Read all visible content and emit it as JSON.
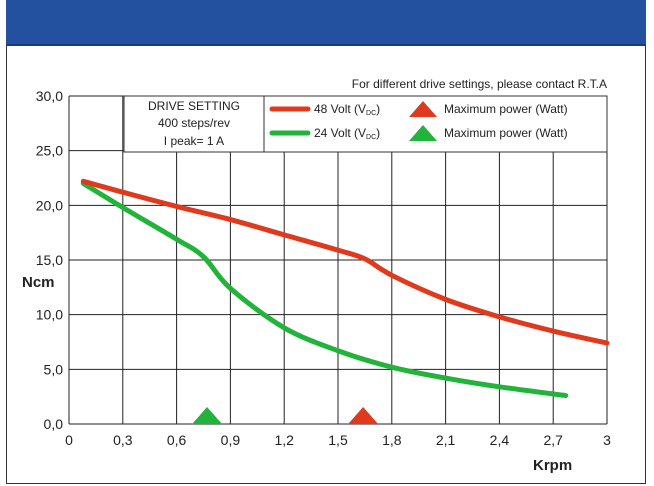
{
  "chart_data": {
    "type": "line",
    "xlabel": "Krpm",
    "ylabel": "Ncm",
    "xlim": [
      0,
      3
    ],
    "ylim": [
      0,
      30
    ],
    "x_ticks": [
      "0",
      "0,3",
      "0,6",
      "0,9",
      "1,2",
      "1,5",
      "1,8",
      "2,1",
      "2,4",
      "2,7",
      "3"
    ],
    "x_tick_values": [
      0,
      0.3,
      0.6,
      0.9,
      1.2,
      1.5,
      1.8,
      2.1,
      2.4,
      2.7,
      3.0
    ],
    "y_ticks": [
      "0,0",
      "5,0",
      "10,0",
      "15,0",
      "20,0",
      "25,0",
      "30,0"
    ],
    "y_tick_values": [
      0,
      5,
      10,
      15,
      20,
      25,
      30
    ],
    "grid": true,
    "note": "For different drive settings, please contact R.T.A",
    "drive_setting": {
      "title": "DRIVE SETTING",
      "steps": "400 steps/rev",
      "current": "I peak= 1 A"
    },
    "series": [
      {
        "name": "48 Volt",
        "color": "#e03a1e",
        "x": [
          0.08,
          0.3,
          0.6,
          0.9,
          1.2,
          1.5,
          1.65,
          1.8,
          2.1,
          2.4,
          2.7,
          3.0
        ],
        "values": [
          22.2,
          21.2,
          19.9,
          18.7,
          17.3,
          15.9,
          15.1,
          13.6,
          11.4,
          9.8,
          8.5,
          7.4
        ],
        "max_power_x": 1.64
      },
      {
        "name": "24 Volt",
        "color": "#22b43a",
        "x": [
          0.08,
          0.3,
          0.6,
          0.75,
          0.9,
          1.2,
          1.5,
          1.8,
          2.1,
          2.4,
          2.77
        ],
        "values": [
          22.0,
          19.8,
          16.9,
          15.3,
          12.4,
          8.8,
          6.7,
          5.2,
          4.2,
          3.4,
          2.6
        ],
        "max_power_x": 0.77
      }
    ],
    "legend": {
      "placement": "top-right",
      "entries": [
        {
          "label": "48 Volt (V",
          "sub": "DC",
          "close": ")",
          "marker_label": "Maximum power (Watt)",
          "color": "#e03a1e"
        },
        {
          "label": "24 Volt (V",
          "sub": "DC",
          "close": ")",
          "marker_label": "Maximum power (Watt)",
          "color": "#22b43a"
        }
      ]
    }
  }
}
